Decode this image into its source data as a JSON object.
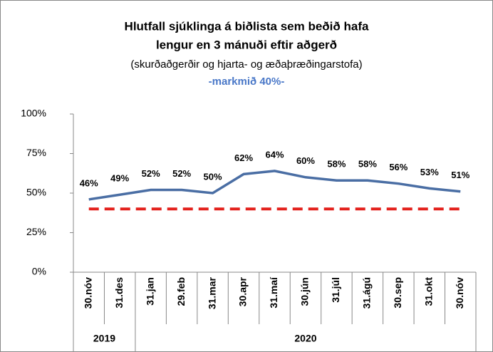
{
  "chart_data": {
    "type": "line",
    "title": [
      "Hlutfall sjúklinga á biðlista sem beðið hafa",
      "lengur en 3 mánuði eftir aðgerð"
    ],
    "subtitle": "(skurðaðgerðir og hjarta- og æðaþræðingarstofa)",
    "annotation": "-markmið 40%-",
    "categories": [
      "30.nóv",
      "31.des",
      "31.jan",
      "29.feb",
      "31.mar",
      "30.apr",
      "31.maí",
      "30.jún",
      "31.júl",
      "31.ágú",
      "30.sep",
      "31.okt",
      "30.nóv"
    ],
    "years": [
      "2019",
      "2019",
      "2020",
      "2020",
      "2020",
      "2020",
      "2020",
      "2020",
      "2020",
      "2020",
      "2020",
      "2020",
      "2020"
    ],
    "series": [
      {
        "color": "#4a6ea4",
        "values": [
          46,
          49,
          52,
          52,
          50,
          62,
          64,
          60,
          58,
          58,
          56,
          53,
          51
        ],
        "value_labels": [
          "46%",
          "49%",
          "52%",
          "52%",
          "50%",
          "62%",
          "64%",
          "60%",
          "58%",
          "58%",
          "56%",
          "53%",
          "51%"
        ]
      }
    ],
    "target": {
      "value": 40,
      "color": "#e3201b"
    },
    "ylim": [
      0,
      100
    ],
    "yticks": [
      {
        "value": 0,
        "label": "0%"
      },
      {
        "value": 25,
        "label": "25%"
      },
      {
        "value": 50,
        "label": "50%"
      },
      {
        "value": 75,
        "label": "75%"
      },
      {
        "value": 100,
        "label": "100%"
      }
    ]
  }
}
